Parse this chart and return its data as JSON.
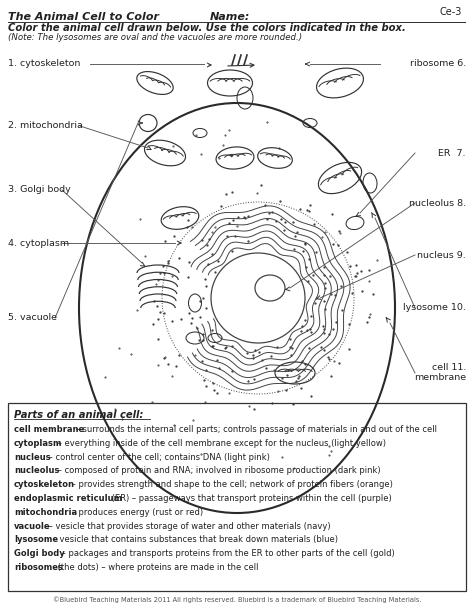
{
  "page_color": "#ffffff",
  "title_text": "The Animal Cell to Color",
  "name_label": "Name:",
  "corner_text": "Ce-3",
  "instruction_bold": "Color the animal cell drawn below. Use the colors indicated in the box.",
  "instruction_italic": "(Note: The lysosomes are oval and the vacuoles are more rounded.)",
  "left_labels": [
    "1. cytoskeleton",
    "2. mitochondria",
    "3. Golgi body",
    "4. cytoplasm",
    "5. vacuole"
  ],
  "right_labels": [
    "ribosome 6.",
    "ER  7.",
    "nucleolus 8.",
    "nucleus 9.",
    "lysosome 10.",
    "cell 11.",
    "membrane"
  ],
  "box_title": "Parts of an animal cell:",
  "definitions": [
    [
      "cell membrane",
      " – surrounds the internal cell parts; controls passage of materials in and out of the cell"
    ],
    [
      "cytoplasm",
      " – everything inside of the cell membrane except for the nucleus (light yellow)"
    ],
    [
      "nucleus",
      " – control center of the cell; contains DNA (light pink)"
    ],
    [
      "nucleolus",
      " – composed of protein and RNA; involved in ribosome production (dark pink)"
    ],
    [
      "cytoskeleton",
      " – provides strength and shape to the cell; network of protein fibers (orange)"
    ],
    [
      "endoplasmic reticulum",
      " (ER) – passageways that transport proteins within the cell (purple)"
    ],
    [
      "mitochondria",
      " – produces energy (rust or red)"
    ],
    [
      "vacuole",
      " – vesicle that provides storage of water and other materials (navy)"
    ],
    [
      "lysosome",
      " – vesicle that contains substances that break down materials (blue)"
    ],
    [
      "Golgi body",
      " – packages and transports proteins from the ER to other parts of the cell (gold)"
    ],
    [
      "ribosomes",
      " (the dots) – where proteins are made in the cell"
    ]
  ],
  "footer": "©Bluebird Teaching Materials 2011 All rights reserved. Bluebird is a trademark of Bluebird Teaching Materials.",
  "cell_color": "#333333",
  "text_color": "#222222",
  "label_color": "#333333"
}
